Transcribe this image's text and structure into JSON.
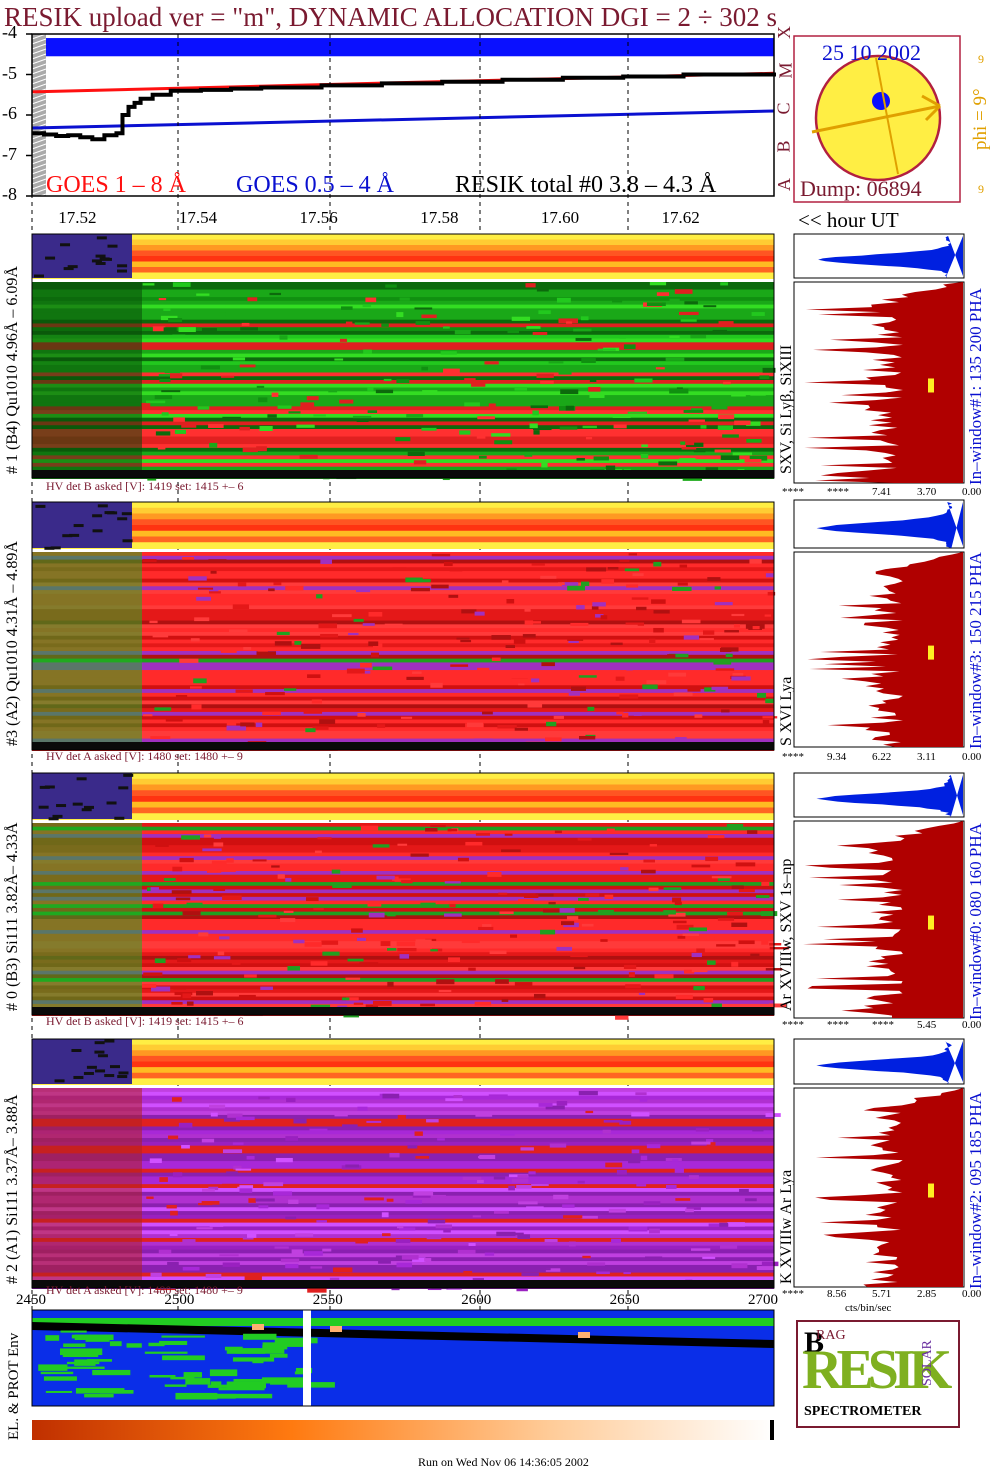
{
  "header": {
    "title": "RESIK upload ver = \"m\", DYNAMIC ALLOCATION  DGI =   2 ÷ 302 s",
    "date": "25 10 2002",
    "dump": "Dump: 06894",
    "phi": "phi =  9°",
    "phi_small_top": "9",
    "phi_small_bottom": "9",
    "goes_letters": [
      "X",
      "M",
      "C",
      "B",
      "A"
    ],
    "hour_ut": "<< hour UT",
    "run_footer": "Run on Wed Nov 06 14:36:05 2002"
  },
  "colors": {
    "title": "#7a1a30",
    "goes_long": "#ff1010",
    "goes_short": "#0a10d0",
    "resik_total": "#000000",
    "sun": "#ffee44",
    "sun_ring": "#b22040",
    "phi_arrow": "#e0a000",
    "spectrum_fill": "#b00000",
    "spectrum_blue": "#0020e0",
    "env_blue": "#0a2ee8",
    "env_green": "#22cc22"
  },
  "chart_data": [
    {
      "type": "line",
      "name": "goes-lightcurves",
      "title": "",
      "xlabel": "<< hour UT",
      "ylabel": "",
      "x_ticks": [
        "17.52",
        "17.54",
        "17.56",
        "17.58",
        "17.60",
        "17.62"
      ],
      "x_tick_values": [
        17.52,
        17.54,
        17.56,
        17.58,
        17.6,
        17.62
      ],
      "xlim": [
        17.512,
        17.635
      ],
      "y_ticks": [
        "-4",
        "-5",
        "-6",
        "-7",
        "-8"
      ],
      "y_tick_values": [
        -4,
        -5,
        -6,
        -7,
        -8
      ],
      "ylim": [
        -8,
        -4
      ],
      "series": [
        {
          "name": "GOES 1 – 8 Å",
          "x": [
            17.512,
            17.635
          ],
          "values": [
            -5.43,
            -4.97
          ]
        },
        {
          "name": "GOES 0.5 – 4 Å",
          "x": [
            17.512,
            17.635
          ],
          "values": [
            -6.32,
            -5.9
          ]
        },
        {
          "name": "RESIK total #0  3.8 – 4.3 Å",
          "x": [
            17.512,
            17.514,
            17.516,
            17.518,
            17.52,
            17.522,
            17.524,
            17.526,
            17.527,
            17.528,
            17.529,
            17.53,
            17.532,
            17.535,
            17.54,
            17.545,
            17.55,
            17.56,
            17.57,
            17.58,
            17.59,
            17.6,
            17.61,
            17.62,
            17.635
          ],
          "values": [
            -6.45,
            -6.48,
            -6.52,
            -6.5,
            -6.55,
            -6.6,
            -6.5,
            -6.45,
            -6.0,
            -5.8,
            -5.7,
            -5.6,
            -5.5,
            -5.4,
            -5.38,
            -5.35,
            -5.32,
            -5.27,
            -5.22,
            -5.18,
            -5.13,
            -5.08,
            -5.05,
            -5.0,
            -4.95
          ]
        }
      ]
    },
    {
      "type": "heatmap",
      "name": "resik-detector-panels",
      "x_ticks": [
        "2450",
        "2500",
        "2550",
        "2600",
        "2650",
        "2700"
      ],
      "x_tick_values": [
        2450,
        2500,
        2550,
        2600,
        2650,
        2700
      ],
      "xlim": [
        2450,
        2700
      ],
      "panels": [
        {
          "detector_label": "# 1 (B4) Qu1010 4.96Å – 6.09Å",
          "lines_label": "SXV, Si Lyβ, SiXIII",
          "hv_label": "HV det B asked [V]:  1419 set:  1415 +–    6",
          "window_label": "In–window#1:  135 200 PHA",
          "scale_labels": [
            "****",
            "****",
            "7.41",
            "3.70",
            "0.00"
          ],
          "palette": "green"
        },
        {
          "detector_label": "#3 (A2) Qu1010  4.31Å – 4.89Å",
          "lines_label": "S XVI Lya",
          "hv_label": "HV det A asked [V]:  1480 set:  1480 +–    9",
          "window_label": "In–window#3:  150 215 PHA",
          "scale_labels": [
            "****",
            "9.34",
            "6.22",
            "3.11",
            "0.00"
          ],
          "palette": "red"
        },
        {
          "detector_label": "# 0 (B3) Si111  3.82Å– 4.33Å",
          "lines_label": "Ar XVIIIw,  SXV 1s–np",
          "hv_label": "HV det B asked [V]:  1419 set:  1415 +–    6",
          "window_label": "In–window#0:  080 160 PHA",
          "scale_labels": [
            "****",
            "****",
            "****",
            "5.45",
            "0.00"
          ],
          "palette": "red"
        },
        {
          "detector_label": "# 2 (A1) Si111  3.37Å– 3.88Å",
          "lines_label": "K XVIIIw  Ar Lya",
          "hv_label": "HV det A asked [V]:  1480 set:  1480 +–    9",
          "window_label": "In–window#2:  095 185 PHA",
          "scale_labels": [
            "****",
            "8.56",
            "5.71",
            "2.85",
            "0.00"
          ],
          "scale_unit": "cts/bin/sec",
          "palette": "magenta"
        }
      ]
    }
  ],
  "env": {
    "label": "EL. & PROT Env"
  },
  "logo": {
    "letters_big": "RESIK",
    "letters_b": "B",
    "letters_rag": "RAG",
    "letters_solar": "SOLAR",
    "spectrometer": "SPECTROMETER"
  }
}
